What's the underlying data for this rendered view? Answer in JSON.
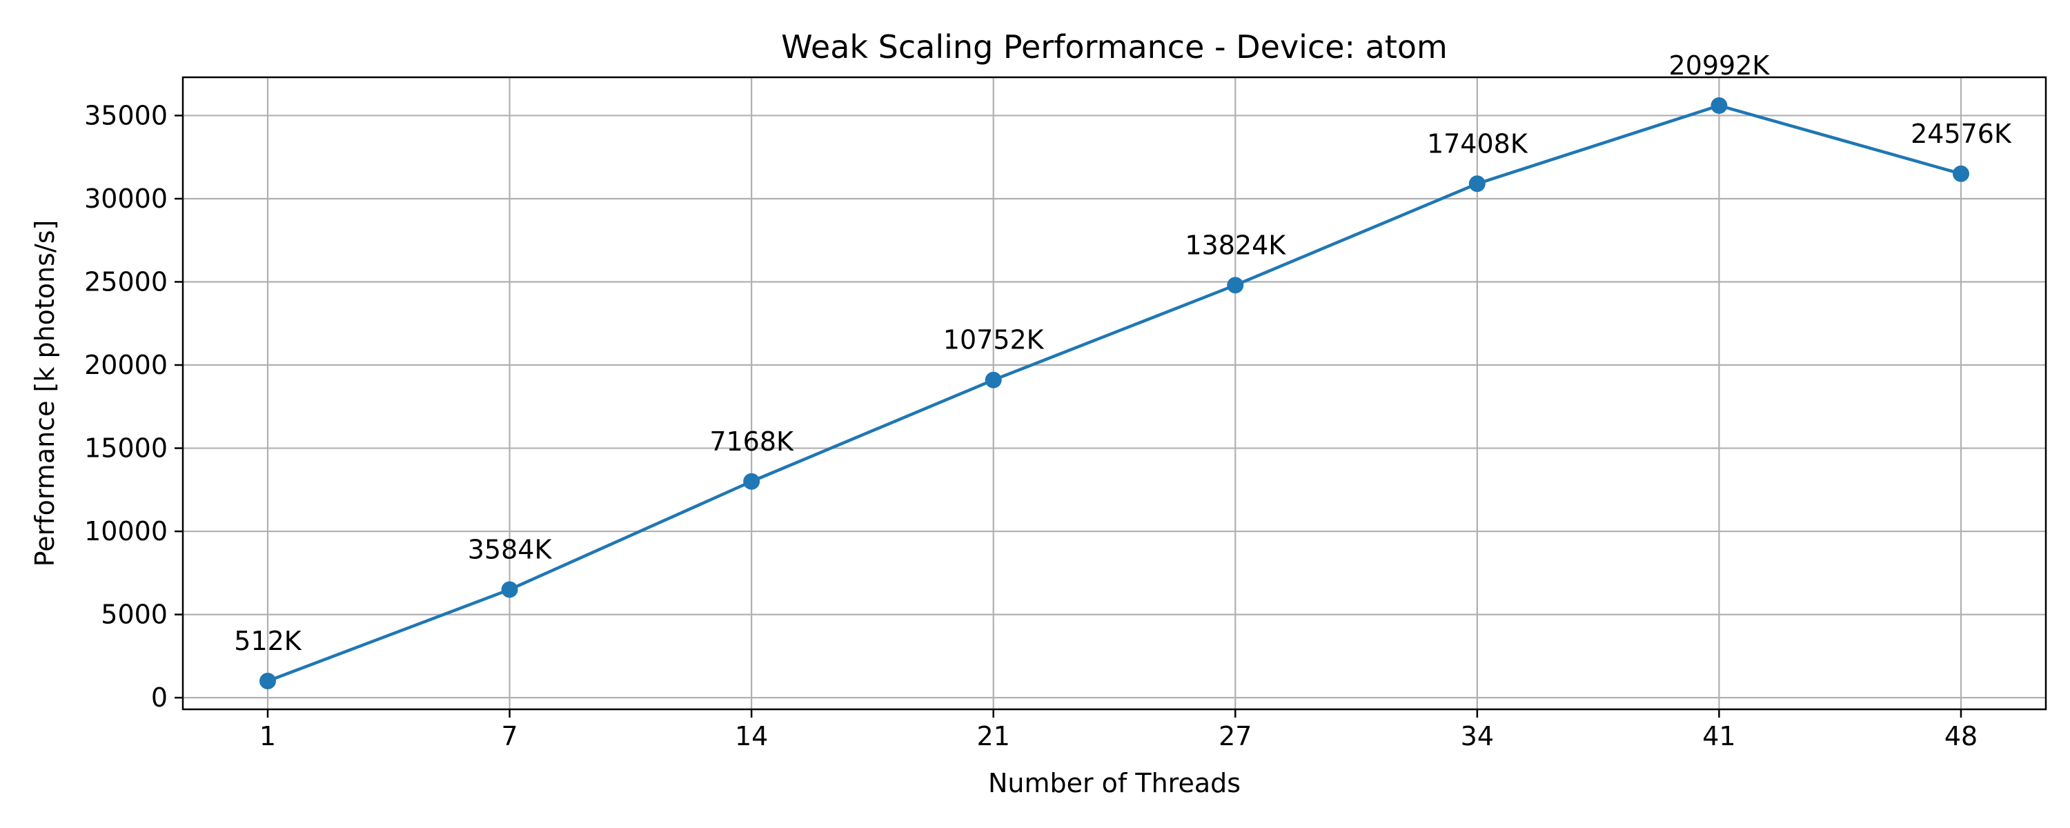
{
  "chart_data": {
    "type": "line",
    "title": "Weak Scaling Performance - Device: atom",
    "xlabel": "Number of Threads",
    "ylabel": "Performance [k photons/s]",
    "x_ticks": [
      "1",
      "7",
      "14",
      "21",
      "27",
      "34",
      "41",
      "48"
    ],
    "y_ticks": [
      0,
      5000,
      10000,
      15000,
      20000,
      25000,
      30000,
      35000
    ],
    "ylim": [
      -700,
      37300
    ],
    "grid": true,
    "colors": {
      "series": "#1f77b4"
    },
    "series": [
      {
        "values": [
          1000,
          6500,
          13000,
          19100,
          24800,
          30900,
          35600,
          31500
        ],
        "point_labels": [
          "512K",
          "3584K",
          "7168K",
          "10752K",
          "13824K",
          "17408K",
          "20992K",
          "24576K"
        ]
      }
    ]
  }
}
